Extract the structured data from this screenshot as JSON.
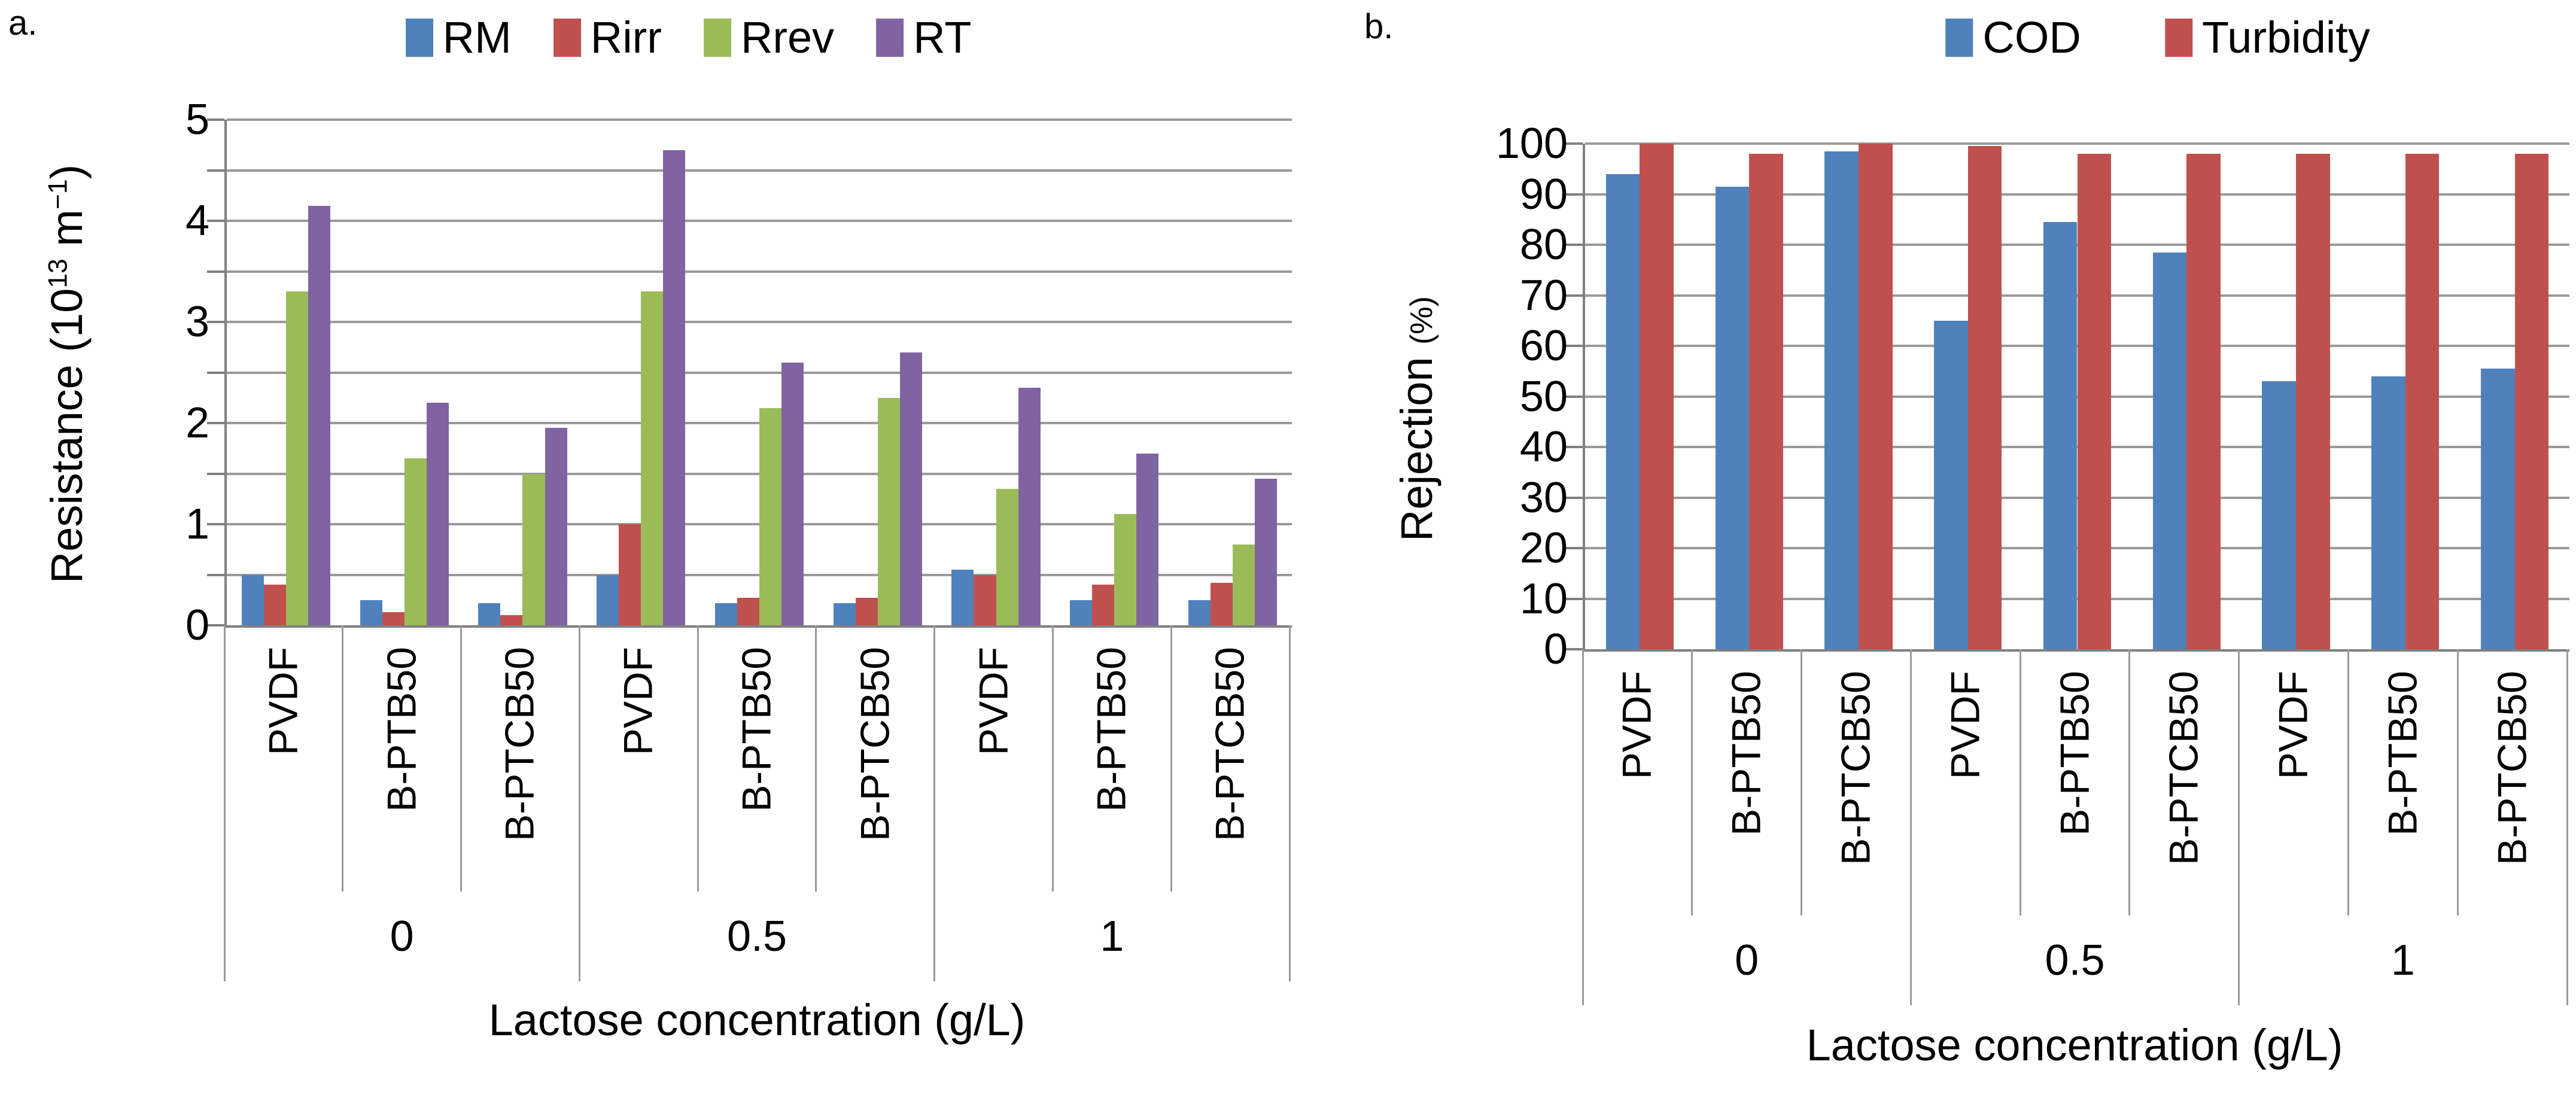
{
  "figure": {
    "style": {
      "background": "#ffffff",
      "text_color": "#000000",
      "gridline_color": "#9a9a9a",
      "axis_color": "#808080"
    },
    "panels": [
      {
        "label": "a.",
        "legend_items": [
          "RM",
          "Rirr",
          "Rrev",
          "RT"
        ]
      },
      {
        "label": "b.",
        "legend_items": [
          "COD",
          "Turbidity"
        ]
      }
    ]
  },
  "chart_data": [
    {
      "type": "bar",
      "panel_label": "a.",
      "title": "",
      "ylabel": "Resistance (10¹³ m⁻¹)",
      "ylabel_parts": {
        "pre": "Resistance (10",
        "sup1": "13",
        "mid": " m",
        "sup2": "−1",
        "post": ")"
      },
      "xlabel": "Lactose concentration (g/L)",
      "ylim": [
        0,
        5
      ],
      "ytick_step": 1,
      "grid_step": 0.5,
      "grid": true,
      "yticks": [
        "0",
        "1",
        "2",
        "3",
        "4",
        "5"
      ],
      "legend_position": "top",
      "group_labels": [
        "0",
        "0.5",
        "1"
      ],
      "categories": [
        "PVDF",
        "B-PTB50",
        "B-PTCB50",
        "PVDF",
        "B-PTB50",
        "B-PTCB50",
        "PVDF",
        "B-PTB50",
        "B-PTCB50"
      ],
      "series": [
        {
          "name": "RM",
          "color": "#4F81BD",
          "values": [
            0.5,
            0.25,
            0.22,
            0.5,
            0.22,
            0.22,
            0.55,
            0.25,
            0.25
          ]
        },
        {
          "name": "Rirr",
          "color": "#C0504D",
          "values": [
            0.4,
            0.13,
            0.1,
            1.0,
            0.27,
            0.27,
            0.5,
            0.4,
            0.42
          ]
        },
        {
          "name": "Rrev",
          "color": "#9BBB59",
          "values": [
            3.3,
            1.65,
            1.5,
            3.3,
            2.15,
            2.25,
            1.35,
            1.1,
            0.8
          ]
        },
        {
          "name": "RT",
          "color": "#8064A2",
          "values": [
            4.15,
            2.2,
            1.95,
            4.7,
            2.6,
            2.7,
            2.35,
            1.7,
            1.45
          ]
        }
      ]
    },
    {
      "type": "bar",
      "panel_label": "b.",
      "title": "",
      "ylabel": "Rejection (%)",
      "ylabel_parts": {
        "main": "Rejection ",
        "unit": "(%)"
      },
      "xlabel": "Lactose concentration (g/L)",
      "ylim": [
        0,
        100
      ],
      "ytick_step": 10,
      "grid_step": 10,
      "grid": true,
      "yticks": [
        "0",
        "10",
        "20",
        "30",
        "40",
        "50",
        "60",
        "70",
        "80",
        "90",
        "100"
      ],
      "legend_position": "top",
      "group_labels": [
        "0",
        "0.5",
        "1"
      ],
      "categories": [
        "PVDF",
        "B-PTB50",
        "B-PTCB50",
        "PVDF",
        "B-PTB50",
        "B-PTCB50",
        "PVDF",
        "B-PTB50",
        "B-PTCB50"
      ],
      "series": [
        {
          "name": "COD",
          "color": "#4F81BD",
          "values": [
            94,
            91.5,
            98.5,
            65,
            84.5,
            78.5,
            53,
            54,
            55.5
          ]
        },
        {
          "name": "Turbidity",
          "color": "#C0504D",
          "values": [
            100,
            98,
            100,
            99.5,
            98,
            98,
            98,
            98,
            98
          ]
        }
      ]
    }
  ]
}
